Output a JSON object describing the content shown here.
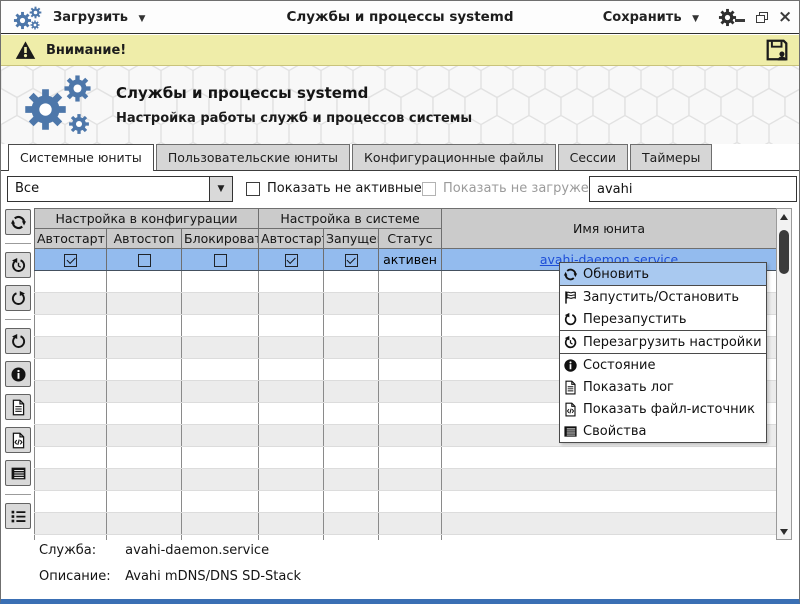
{
  "window": {
    "title": "Службы и процессы systemd",
    "load_button": "Загрузить",
    "save_button": "Сохранить",
    "close_glyph": "×",
    "dropdown_arrow": "▼"
  },
  "warning_bar": {
    "text": "Внимание!"
  },
  "header": {
    "title": "Службы и процессы systemd",
    "subtitle": "Настройка работы служб и процессов системы"
  },
  "tabs": [
    {
      "name": "tab-system-units",
      "label": "Системные юниты",
      "active": true
    },
    {
      "name": "tab-user-units",
      "label": "Пользовательские юниты",
      "active": false
    },
    {
      "name": "tab-config-files",
      "label": "Конфигурационные файлы",
      "active": false
    },
    {
      "name": "tab-sessions",
      "label": "Сессии",
      "active": false
    },
    {
      "name": "tab-timers",
      "label": "Таймеры",
      "active": false
    }
  ],
  "filters": {
    "dropdown_value": "Все",
    "checkbox_inactive": {
      "label": "Показать не активные",
      "checked": false,
      "enabled": true
    },
    "checkbox_unloaded": {
      "label": "Показать не загруженные",
      "checked": false,
      "enabled": false
    },
    "search_value": "avahi"
  },
  "sidebar": {
    "buttons": [
      {
        "name": "refresh-button",
        "icon": "refresh",
        "sep_after": true
      },
      {
        "name": "history-restore-button",
        "icon": "history",
        "sep_after": false
      },
      {
        "name": "redo-arrow-button",
        "icon": "redo",
        "sep_after": true
      },
      {
        "name": "restart-button",
        "icon": "undo",
        "sep_after": false
      },
      {
        "name": "status-info-button",
        "icon": "info",
        "sep_after": false
      },
      {
        "name": "show-log-button",
        "icon": "doc",
        "sep_after": false
      },
      {
        "name": "show-source-button",
        "icon": "doc-code",
        "sep_after": false
      },
      {
        "name": "properties-button",
        "icon": "list-box",
        "sep_after": true
      },
      {
        "name": "unit-list-button",
        "icon": "bullet-list",
        "sep_after": false
      }
    ]
  },
  "table": {
    "group_headers": [
      {
        "label": "Настройка в конфигурации",
        "span": 3
      },
      {
        "label": "Настройка в системе",
        "span": 3
      }
    ],
    "columns": [
      "Автостарт",
      "Автостоп",
      "Блокировать",
      "Автостарт",
      "Запущен",
      "Статус"
    ],
    "name_column": "Имя юнита",
    "checkbox_names": [
      "checkbox-config-autostart",
      "checkbox-config-autostop",
      "checkbox-config-block",
      "checkbox-system-autostart",
      "checkbox-system-running"
    ],
    "rows": [
      {
        "checks": [
          true,
          false,
          false,
          true,
          true
        ],
        "status": "активен",
        "unit": "avahi-daemon.service",
        "selected": true
      }
    ],
    "empty_row_count": 13
  },
  "context_menu": {
    "groups": [
      {
        "items": [
          {
            "name": "menu-refresh",
            "label": "Обновить",
            "icon": "refresh",
            "highlighted": true
          }
        ]
      },
      {
        "items": [
          {
            "name": "menu-start-stop",
            "label": "Запустить/Остановить",
            "icon": "flag",
            "highlighted": false
          },
          {
            "name": "menu-restart",
            "label": "Перезапустить",
            "icon": "undo",
            "highlighted": false
          }
        ]
      },
      {
        "items": [
          {
            "name": "menu-reload-config",
            "label": "Перезагрузить настройки",
            "icon": "history",
            "highlighted": false
          }
        ]
      },
      {
        "items": [
          {
            "name": "menu-status",
            "label": "Состояние",
            "icon": "info",
            "highlighted": false
          },
          {
            "name": "menu-show-log",
            "label": "Показать лог",
            "icon": "doc",
            "highlighted": false
          },
          {
            "name": "menu-show-source",
            "label": "Показать файл-источник",
            "icon": "doc-code",
            "highlighted": false
          },
          {
            "name": "menu-properties",
            "label": "Свойства",
            "icon": "list-box",
            "highlighted": false
          }
        ]
      }
    ]
  },
  "details": {
    "service_label": "Служба:",
    "service_value": "avahi-daemon.service",
    "description_label": "Описание:",
    "description_value": "Avahi mDNS/DNS SD-Stack"
  },
  "colors": {
    "accent_blue": "#4d77aa",
    "warning_bg": "#efeda9",
    "selection": "#93bbee",
    "link": "#1d4ed8",
    "frame_blue": "#3a6fb4"
  }
}
